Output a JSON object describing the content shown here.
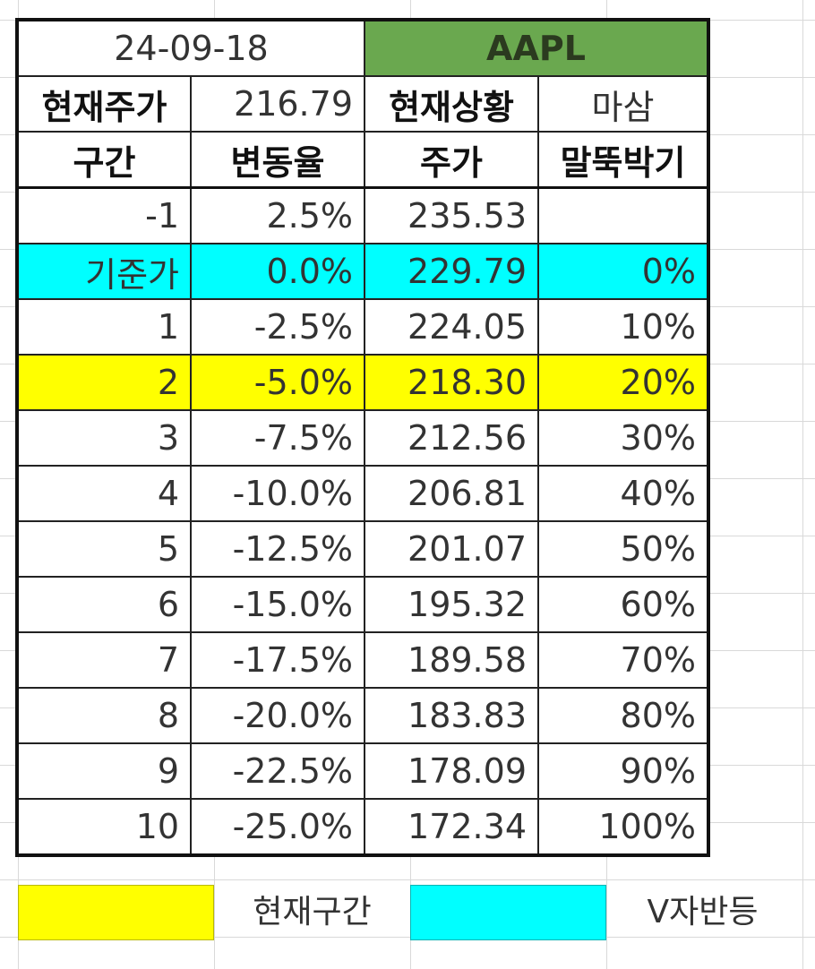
{
  "header": {
    "date": "24-09-18",
    "ticker": "AAPL",
    "ticker_color": "#6aa84f",
    "current_price_label": "현재주가",
    "current_price": "216.79",
    "status_label": "현재상황",
    "status_value": "마삼"
  },
  "columns": [
    "구간",
    "변동율",
    "주가",
    "말뚝박기"
  ],
  "rows": [
    {
      "section": "-1",
      "change": "2.5%",
      "price": "235.53",
      "stake": "",
      "highlight": ""
    },
    {
      "section": "기준가",
      "change": "0.0%",
      "price": "229.79",
      "stake": "0%",
      "highlight": "cyan"
    },
    {
      "section": "1",
      "change": "-2.5%",
      "price": "224.05",
      "stake": "10%",
      "highlight": ""
    },
    {
      "section": "2",
      "change": "-5.0%",
      "price": "218.30",
      "stake": "20%",
      "highlight": "yellow"
    },
    {
      "section": "3",
      "change": "-7.5%",
      "price": "212.56",
      "stake": "30%",
      "highlight": ""
    },
    {
      "section": "4",
      "change": "-10.0%",
      "price": "206.81",
      "stake": "40%",
      "highlight": ""
    },
    {
      "section": "5",
      "change": "-12.5%",
      "price": "201.07",
      "stake": "50%",
      "highlight": ""
    },
    {
      "section": "6",
      "change": "-15.0%",
      "price": "195.32",
      "stake": "60%",
      "highlight": ""
    },
    {
      "section": "7",
      "change": "-17.5%",
      "price": "189.58",
      "stake": "70%",
      "highlight": ""
    },
    {
      "section": "8",
      "change": "-20.0%",
      "price": "183.83",
      "stake": "80%",
      "highlight": ""
    },
    {
      "section": "9",
      "change": "-22.5%",
      "price": "178.09",
      "stake": "90%",
      "highlight": ""
    },
    {
      "section": "10",
      "change": "-25.0%",
      "price": "172.34",
      "stake": "100%",
      "highlight": ""
    }
  ],
  "highlight_colors": {
    "yellow": "#ffff00",
    "cyan": "#00ffff"
  },
  "legend": {
    "current_section_label": "현재구간",
    "v_rebound_label": "V자반등"
  }
}
